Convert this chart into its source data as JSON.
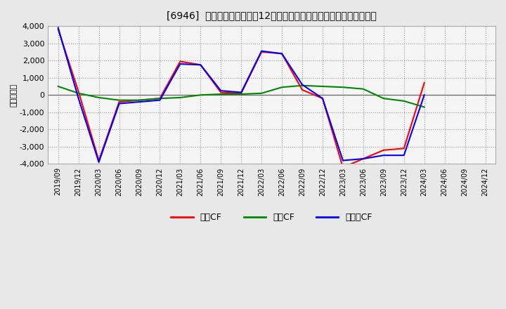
{
  "title": "[6946]  キャッシュフローの12か月移動合計の対前年同期増減額の推移",
  "ylabel": "（百万円）",
  "background_color": "#f0f0f0",
  "plot_background_color": "#f8f8f8",
  "grid_color": "#aaaaaa",
  "ylim": [
    -4000,
    4000
  ],
  "yticks": [
    -4000,
    -3000,
    -2000,
    -1000,
    0,
    1000,
    2000,
    3000,
    4000
  ],
  "x_labels": [
    "2019/09",
    "2019/12",
    "2020/03",
    "2020/06",
    "2020/09",
    "2020/12",
    "2021/03",
    "2021/06",
    "2021/09",
    "2021/12",
    "2022/03",
    "2022/06",
    "2022/09",
    "2022/12",
    "2023/03",
    "2023/06",
    "2023/09",
    "2023/12",
    "2024/03",
    "2024/06",
    "2024/09",
    "2024/12"
  ],
  "series": {
    "営業CF": {
      "color": "#ff0000",
      "values": [
        3800,
        200,
        -3800,
        -400,
        -300,
        -200,
        1950,
        1750,
        150,
        100,
        2500,
        2400,
        300,
        -200,
        -4200,
        -3700,
        -3200,
        -3100,
        700,
        null,
        null,
        null
      ]
    },
    "投資CF": {
      "color": "#008800",
      "values": [
        500,
        100,
        -150,
        -300,
        -300,
        -200,
        -150,
        0,
        50,
        50,
        100,
        450,
        550,
        500,
        450,
        350,
        -200,
        -350,
        -700,
        null,
        null,
        null
      ]
    },
    "フリーCF": {
      "color": "#0000ff",
      "values": [
        3900,
        -200,
        -3900,
        -500,
        -400,
        -300,
        1800,
        1750,
        250,
        150,
        2550,
        2400,
        600,
        -200,
        -3800,
        -3700,
        -3500,
        -3500,
        0,
        null,
        null,
        null
      ]
    }
  },
  "series_order": [
    "営業CF",
    "投資CF",
    "フリーCF"
  ],
  "legend_labels": [
    "営業CF",
    "投資CF",
    "フリーCF"
  ],
  "legend_colors": [
    "#ff0000",
    "#008800",
    "#0000ff"
  ]
}
